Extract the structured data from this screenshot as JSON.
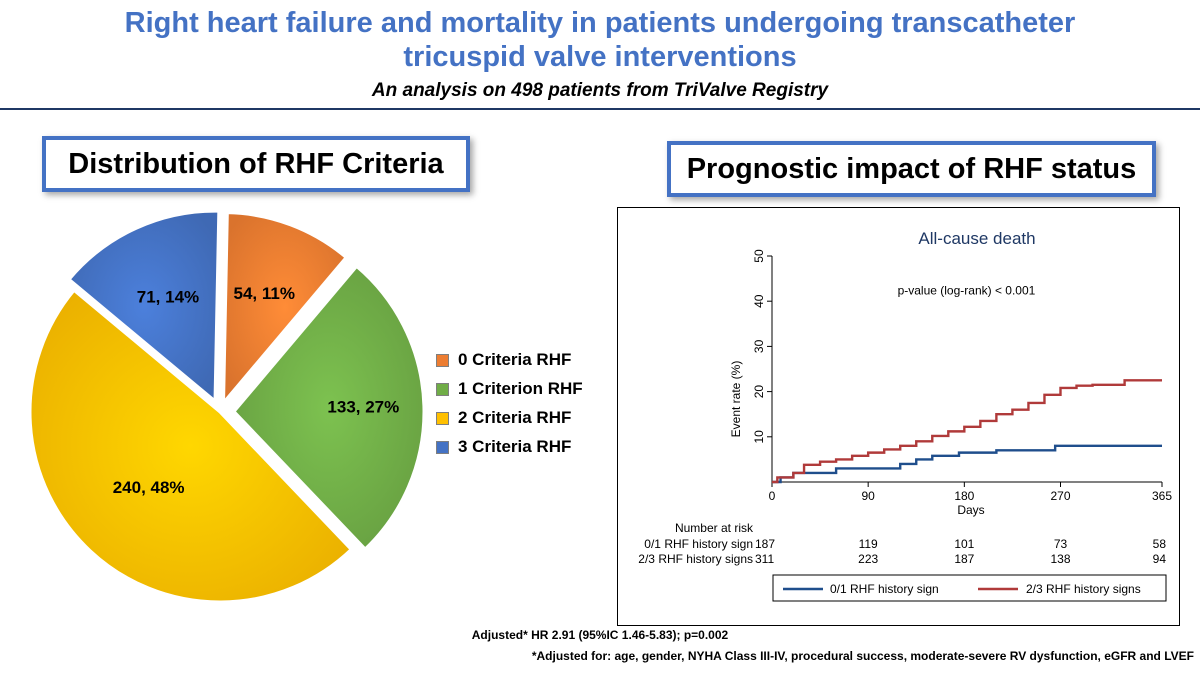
{
  "header": {
    "title_line1": "Right heart failure and mortality in patients undergoing transcatheter",
    "title_line2": "tricuspid valve interventions",
    "subtitle": "An analysis on 498 patients from TriValve Registry"
  },
  "left_panel": {
    "heading": "Distribution of RHF Criteria"
  },
  "right_panel": {
    "heading": "Prognostic impact of RHF status"
  },
  "chart_data": [
    {
      "type": "pie",
      "title": "Distribution of RHF Criteria",
      "slices": [
        {
          "label": "0 Criteria RHF",
          "value": 54,
          "pct": 11,
          "data_label": "54, 11%",
          "color": "#ed7d31"
        },
        {
          "label": "1 Criterion RHF",
          "value": 133,
          "pct": 27,
          "data_label": "133, 27%",
          "color": "#70ad47"
        },
        {
          "label": "2 Criteria RHF",
          "value": 240,
          "pct": 48,
          "data_label": "240, 48%",
          "color": "#ffc000"
        },
        {
          "label": "3 Criteria RHF",
          "value": 71,
          "pct": 14,
          "data_label": "71, 14%",
          "color": "#4472c4"
        }
      ],
      "legend_position": "right"
    },
    {
      "type": "line",
      "subtype": "kaplan-meier",
      "title": "All-cause death",
      "xlabel": "Days",
      "ylabel": "Event rate (%)",
      "xlim": [
        0,
        365
      ],
      "ylim": [
        0,
        50
      ],
      "xticks": [
        0,
        90,
        180,
        270,
        365
      ],
      "yticks": [
        10,
        20,
        30,
        40,
        50
      ],
      "annotation": "p-value (log-rank) < 0.001",
      "series": [
        {
          "name": "0/1 RHF history sign",
          "color": "#1f4e8c",
          "x": [
            0,
            8,
            20,
            60,
            120,
            135,
            150,
            175,
            210,
            265,
            365
          ],
          "y": [
            0,
            1.0,
            2.0,
            3.0,
            4.0,
            5.0,
            5.8,
            6.5,
            7.0,
            8.0,
            8.0
          ]
        },
        {
          "name": "2/3 RHF history signs",
          "color": "#b03a3a",
          "x": [
            0,
            5,
            20,
            30,
            45,
            60,
            75,
            90,
            105,
            120,
            135,
            150,
            165,
            180,
            195,
            210,
            225,
            240,
            255,
            270,
            285,
            300,
            330,
            365
          ],
          "y": [
            0,
            1.0,
            2.0,
            3.8,
            4.5,
            5.0,
            5.8,
            6.5,
            7.2,
            8.0,
            9.0,
            10.2,
            11.2,
            12.2,
            13.5,
            15.0,
            16.0,
            17.5,
            19.3,
            20.8,
            21.3,
            21.5,
            22.5,
            22.5
          ]
        }
      ],
      "risk_table": {
        "title": "Number at risk",
        "rows": [
          {
            "label": "0/1 RHF history sign",
            "values": [
              187,
              119,
              101,
              73,
              58
            ]
          },
          {
            "label": "2/3 RHF history signs",
            "values": [
              311,
              223,
              187,
              138,
              94
            ]
          }
        ]
      }
    }
  ],
  "footnotes": {
    "hr": "Adjusted* HR 2.91 (95%IC 1.46-5.83); p=0.002",
    "adjusted_for": "*Adjusted for: age, gender, NYHA Class III-IV, procedural success, moderate-severe RV dysfunction, eGFR and LVEF"
  }
}
